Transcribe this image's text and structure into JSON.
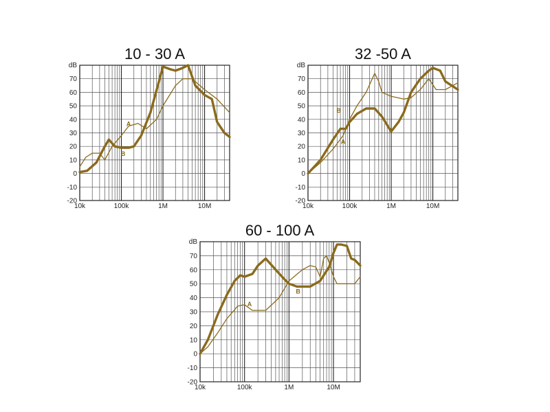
{
  "colors": {
    "curve": "#8a6a1c",
    "grid": "#555555",
    "frame": "#222222"
  },
  "chart_data": [
    {
      "type": "line",
      "title": "10 - 30 A",
      "xscale": "log",
      "xlim": [
        10000,
        40000000
      ],
      "ylim": [
        -20,
        80
      ],
      "yunit_label": "dB",
      "yticks": [
        "70",
        "60",
        "50",
        "40",
        "30",
        "20",
        "10",
        "0",
        "-10",
        "-20"
      ],
      "xticks": [
        {
          "value": 10000,
          "label": "10k"
        },
        {
          "value": 100000,
          "label": "100k"
        },
        {
          "value": 1000000,
          "label": "1M"
        },
        {
          "value": 10000000,
          "label": "10M"
        }
      ],
      "grid": true,
      "series": [
        {
          "name": "A",
          "weight": "thin",
          "label_at": {
            "x": 150000,
            "y": 35
          },
          "x": [
            10000,
            14000,
            20000,
            30000,
            40000,
            60000,
            100000,
            150000,
            250000,
            400000,
            700000,
            1000000,
            2000000,
            3000000,
            5000000,
            10000000,
            20000000,
            40000000
          ],
          "y": [
            5,
            12,
            15,
            15,
            10,
            20,
            28,
            35,
            37,
            33,
            40,
            50,
            65,
            70,
            70,
            62,
            55,
            45
          ]
        },
        {
          "name": "B",
          "weight": "thick",
          "label_at": {
            "x": 110000,
            "y": 13
          },
          "x": [
            10000,
            15000,
            25000,
            40000,
            50000,
            70000,
            100000,
            150000,
            200000,
            300000,
            500000,
            800000,
            1000000,
            1500000,
            2000000,
            3000000,
            4000000,
            6000000,
            10000000,
            15000000,
            20000000,
            30000000,
            40000000
          ],
          "y": [
            1,
            2,
            8,
            20,
            25,
            20,
            19,
            19,
            20,
            28,
            45,
            68,
            79,
            77,
            76,
            78,
            80,
            65,
            58,
            55,
            38,
            30,
            27
          ]
        }
      ]
    },
    {
      "type": "line",
      "title": "32 -50 A",
      "xscale": "log",
      "xlim": [
        10000,
        40000000
      ],
      "ylim": [
        -20,
        80
      ],
      "yunit_label": "dB",
      "yticks": [
        "70",
        "60",
        "50",
        "40",
        "30",
        "20",
        "10",
        "0",
        "-10",
        "-20"
      ],
      "xticks": [
        {
          "value": 10000,
          "label": "10k"
        },
        {
          "value": 100000,
          "label": "100k"
        },
        {
          "value": 1000000,
          "label": "1M"
        },
        {
          "value": 10000000,
          "label": "10M"
        }
      ],
      "grid": true,
      "series": [
        {
          "name": "A",
          "weight": "thin",
          "label_at": {
            "x": 70000,
            "y": 22
          },
          "x": [
            10000,
            20000,
            40000,
            70000,
            100000,
            150000,
            250000,
            400000,
            500000,
            600000,
            1000000,
            2000000,
            3000000,
            5000000,
            8000000,
            12000000,
            20000000,
            40000000
          ],
          "y": [
            0,
            8,
            18,
            28,
            40,
            50,
            60,
            74,
            68,
            60,
            57,
            55,
            56,
            62,
            70,
            62,
            62,
            67
          ]
        },
        {
          "name": "B",
          "weight": "thick",
          "label_at": {
            "x": 55000,
            "y": 45
          },
          "x": [
            10000,
            20000,
            40000,
            60000,
            80000,
            100000,
            150000,
            250000,
            400000,
            600000,
            1000000,
            1500000,
            2000000,
            3000000,
            5000000,
            8000000,
            10000000,
            15000000,
            20000000,
            40000000
          ],
          "y": [
            0,
            10,
            25,
            33,
            33,
            38,
            44,
            48,
            48,
            42,
            31,
            38,
            45,
            60,
            70,
            76,
            78,
            76,
            68,
            62
          ]
        }
      ]
    },
    {
      "type": "line",
      "title": "60 - 100 A",
      "xscale": "log",
      "xlim": [
        10000,
        40000000
      ],
      "ylim": [
        -20,
        80
      ],
      "yunit_label": "dB",
      "yticks": [
        "70",
        "60",
        "50",
        "40",
        "30",
        "20",
        "10",
        "0",
        "-10",
        "-20"
      ],
      "xticks": [
        {
          "value": 10000,
          "label": "10k"
        },
        {
          "value": 100000,
          "label": "100k"
        },
        {
          "value": 1000000,
          "label": "1M"
        },
        {
          "value": 10000000,
          "label": "10M"
        }
      ],
      "grid": true,
      "series": [
        {
          "name": "A",
          "weight": "thin",
          "label_at": {
            "x": 130000,
            "y": 34
          },
          "x": [
            10000,
            15000,
            25000,
            40000,
            70000,
            100000,
            150000,
            300000,
            600000,
            1000000,
            2000000,
            3000000,
            4000000,
            5000000,
            6000000,
            7000000,
            8000000,
            10000000,
            12000000,
            15000000,
            20000000,
            30000000,
            40000000
          ],
          "y": [
            0,
            5,
            15,
            25,
            34,
            35,
            31,
            31,
            40,
            52,
            60,
            63,
            62,
            55,
            68,
            70,
            65,
            55,
            50,
            50,
            50,
            50,
            55
          ]
        },
        {
          "name": "B",
          "weight": "thick",
          "label_at": {
            "x": 1600000,
            "y": 43
          },
          "x": [
            10000,
            15000,
            25000,
            40000,
            60000,
            80000,
            100000,
            150000,
            200000,
            300000,
            500000,
            800000,
            1000000,
            1500000,
            2000000,
            3000000,
            5000000,
            8000000,
            10000000,
            12000000,
            15000000,
            20000000,
            25000000,
            30000000,
            40000000
          ],
          "y": [
            0,
            10,
            28,
            42,
            52,
            56,
            55,
            57,
            63,
            68,
            60,
            53,
            50,
            48,
            48,
            48,
            52,
            62,
            72,
            78,
            78,
            77,
            68,
            67,
            63
          ]
        }
      ]
    }
  ]
}
